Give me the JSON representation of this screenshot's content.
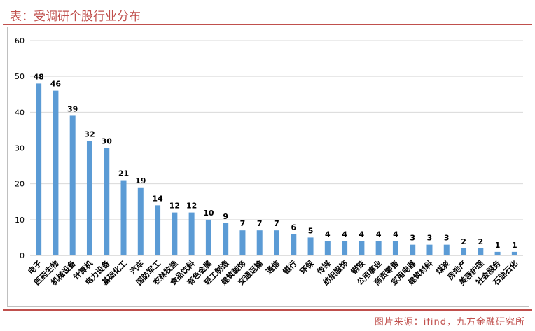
{
  "header": {
    "title": "表：受调研个股行业分布"
  },
  "footer": {
    "source": "图片来源：ifind，九方金融研究所"
  },
  "colors": {
    "bar": "#5b9bd5",
    "accent": "#c0504d",
    "grid": "#d9d9d9"
  },
  "chart_data": {
    "type": "bar",
    "title": "",
    "xlabel": "",
    "ylabel": "",
    "ylim": [
      0,
      60
    ],
    "yticks": [
      0,
      10,
      20,
      30,
      40,
      50,
      60
    ],
    "grid": true,
    "legend": "none",
    "categories": [
      "电子",
      "医药生物",
      "机械设备",
      "计算机",
      "电力设备",
      "基础化工",
      "汽车",
      "国防军工",
      "农林牧渔",
      "食品饮料",
      "有色金属",
      "轻工制造",
      "建筑装饰",
      "交通运输",
      "通信",
      "银行",
      "环保",
      "传媒",
      "纺织服饰",
      "钢铁",
      "公用事业",
      "商贸零售",
      "家用电器",
      "建筑材料",
      "煤炭",
      "房地产",
      "美容护理",
      "社会服务",
      "石油石化"
    ],
    "values": [
      48,
      46,
      39,
      32,
      30,
      21,
      19,
      14,
      12,
      12,
      10,
      9,
      7,
      7,
      7,
      6,
      5,
      4,
      4,
      4,
      4,
      4,
      3,
      3,
      3,
      2,
      2,
      1,
      1
    ]
  }
}
